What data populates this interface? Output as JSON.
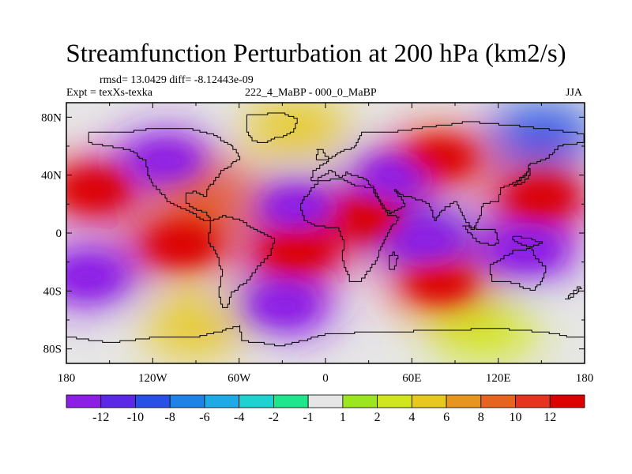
{
  "chart_data": {
    "type": "heatmap",
    "projection": "cylindrical-equidistant",
    "title": "Streamfunction Perturbation at 200 hPa (km2/s)",
    "stats": "rmsd= 13.0429  diff= -8.12443e-09",
    "left_label": "Expt = texXs-texka",
    "center_label": "222_4_MaBP - 000_0_MaBP",
    "right_label": "JJA",
    "lon_range": [
      -180,
      180
    ],
    "lat_range": [
      -90,
      90
    ],
    "x_ticks": [
      "180",
      "120W",
      "60W",
      "0",
      "60E",
      "120E",
      "180"
    ],
    "y_ticks": [
      "80N",
      "40N",
      "0",
      "40S",
      "80S"
    ],
    "colorbar": {
      "labels": [
        "-12",
        "-10",
        "-8",
        "-6",
        "-4",
        "-2",
        "-1",
        "1",
        "2",
        "4",
        "6",
        "8",
        "10",
        "12"
      ],
      "colors": [
        "#8c1ee6",
        "#5a28e6",
        "#2850e6",
        "#1e82e6",
        "#1eaae6",
        "#1ed2d2",
        "#1ee68c",
        "#e6e6e6",
        "#9be61e",
        "#d2e61e",
        "#e6c81e",
        "#e6961e",
        "#e6641e",
        "#e6321e",
        "#dc0000"
      ]
    },
    "features": [
      {
        "lon": -160,
        "lat": 30,
        "value": 14
      },
      {
        "lon": -165,
        "lat": -30,
        "value": -14
      },
      {
        "lon": -110,
        "lat": 50,
        "value": -13
      },
      {
        "lon": -20,
        "lat": 18,
        "value": -13
      },
      {
        "lon": 30,
        "lat": 10,
        "value": 13
      },
      {
        "lon": -80,
        "lat": 28,
        "value": 9
      },
      {
        "lon": 50,
        "lat": 40,
        "value": -12
      },
      {
        "lon": 80,
        "lat": 52,
        "value": 12
      },
      {
        "lon": 150,
        "lat": 25,
        "value": 14
      },
      {
        "lon": 140,
        "lat": -12,
        "value": -14
      },
      {
        "lon": 70,
        "lat": -5,
        "value": -11
      },
      {
        "lon": -20,
        "lat": -12,
        "value": 14
      },
      {
        "lon": -100,
        "lat": -8,
        "value": 13
      },
      {
        "lon": 80,
        "lat": -35,
        "value": 12
      },
      {
        "lon": -30,
        "lat": -50,
        "value": -13
      },
      {
        "lon": -90,
        "lat": -65,
        "value": 5
      },
      {
        "lon": 110,
        "lat": -68,
        "value": 3
      },
      {
        "lon": 150,
        "lat": 68,
        "value": -9
      },
      {
        "lon": -20,
        "lat": 72,
        "value": 5
      }
    ]
  }
}
